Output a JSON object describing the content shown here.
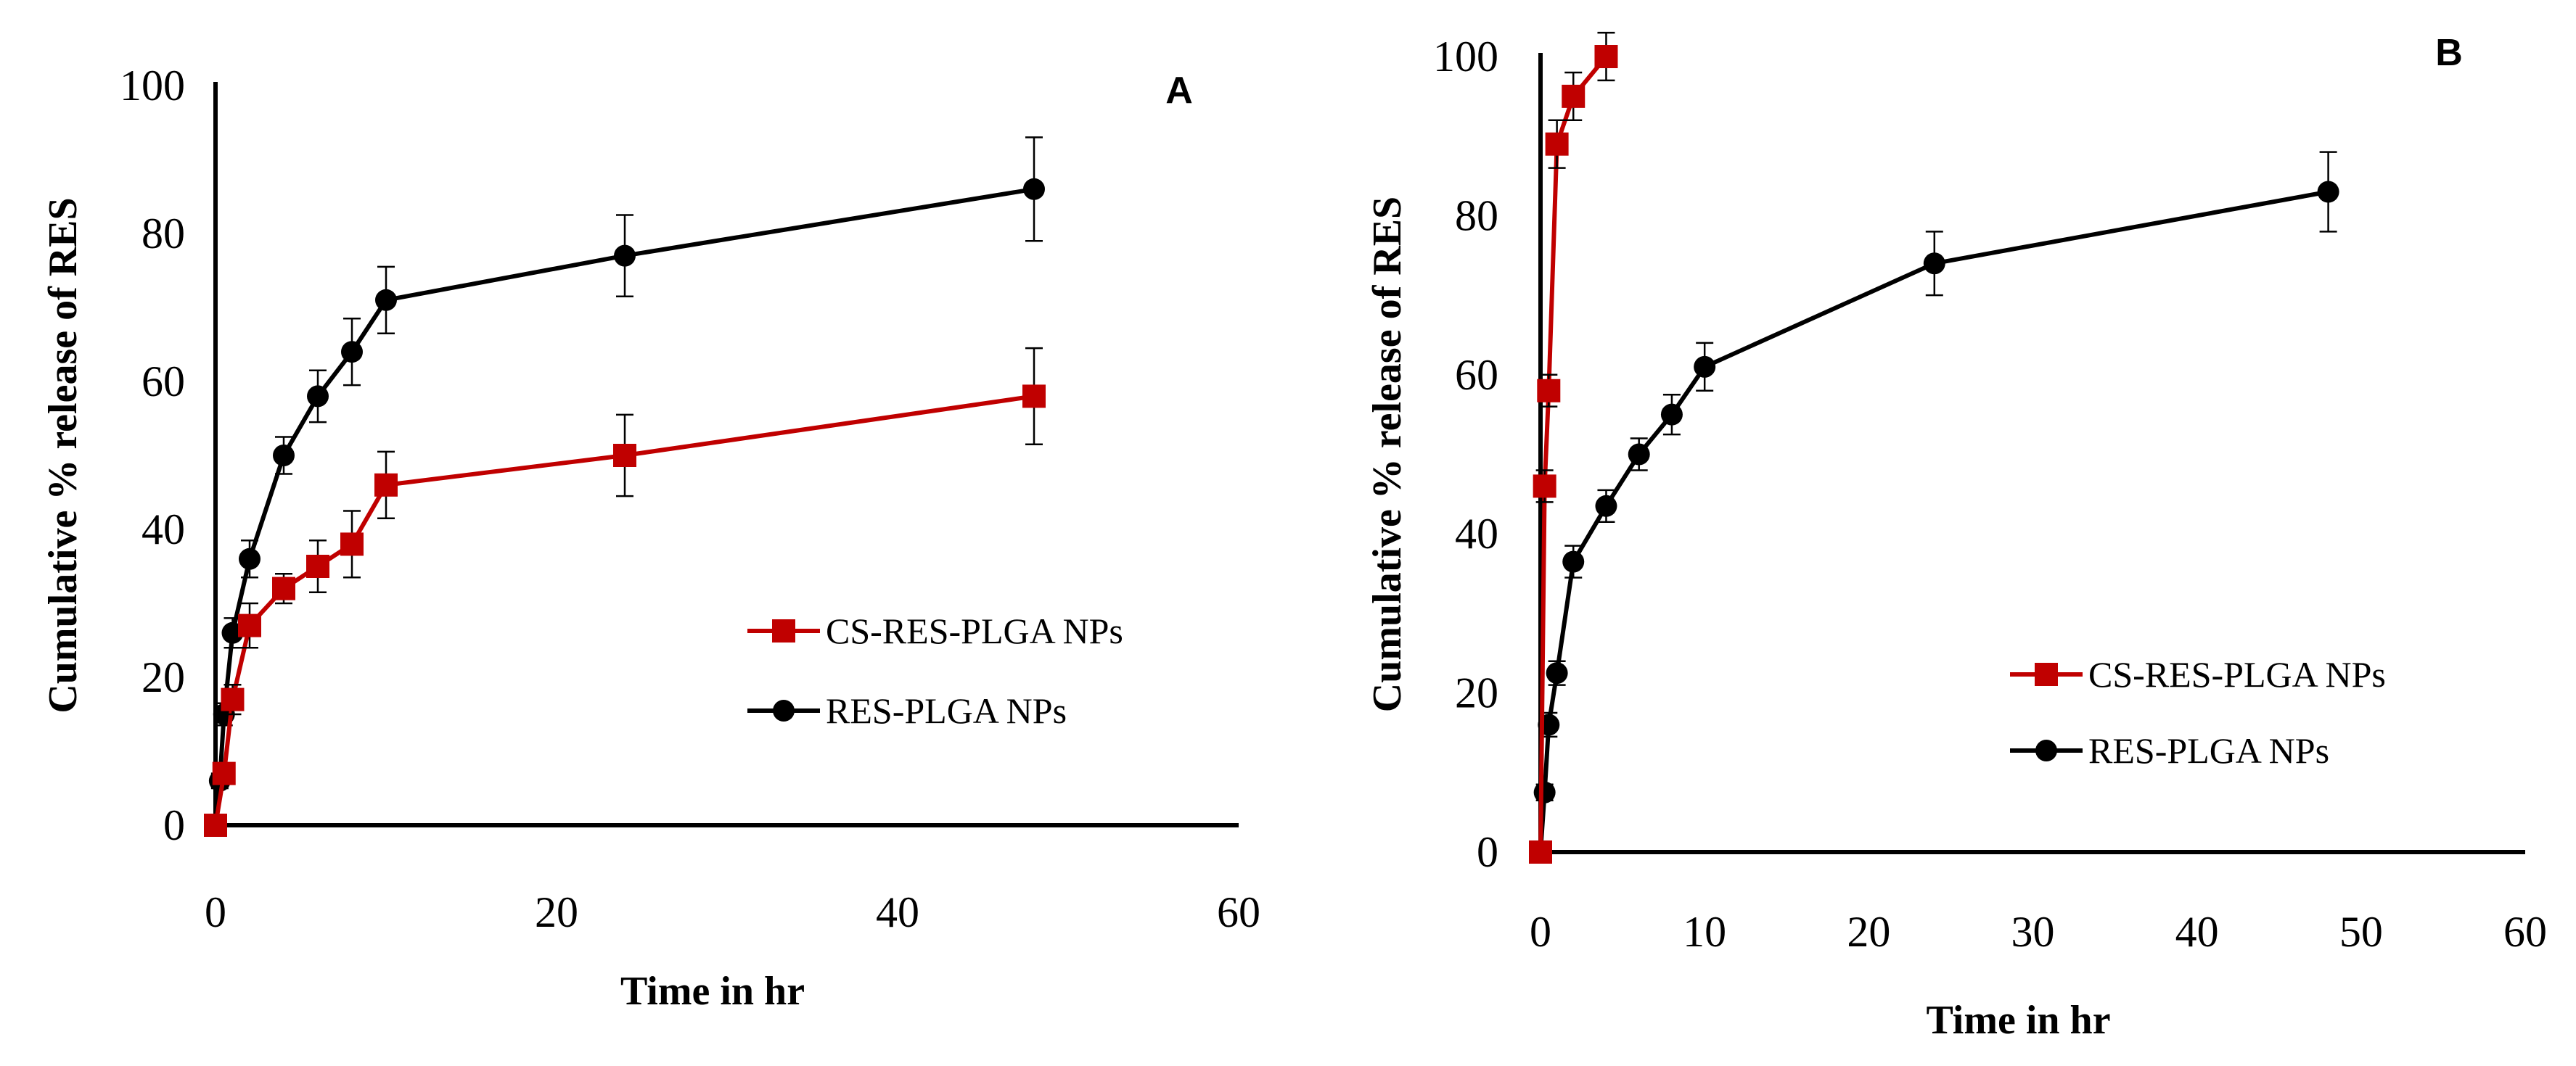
{
  "chart_data": [
    {
      "type": "line",
      "panel_label": "A",
      "xlabel": "Time in hr",
      "ylabel": "Cumulative  % release of RES",
      "xlim": [
        0,
        60
      ],
      "ylim": [
        0,
        100
      ],
      "x_ticks": [
        0,
        20,
        40,
        60
      ],
      "y_ticks": [
        0,
        20,
        40,
        60,
        80,
        100
      ],
      "legend_position": "center-right",
      "series": [
        {
          "name": "CS-RES-PLGA NPs",
          "color": "#c00000",
          "marker": "square",
          "x": [
            0,
            0.5,
            1,
            2,
            4,
            6,
            8,
            10,
            24,
            48
          ],
          "y": [
            0,
            7,
            17,
            27,
            32,
            35,
            38,
            46,
            50,
            58
          ],
          "err": [
            0,
            1,
            2,
            3,
            2,
            3.5,
            4.5,
            4.5,
            5.5,
            6.5
          ]
        },
        {
          "name": "RES-PLGA NPs",
          "color": "#000000",
          "marker": "circle",
          "x": [
            0,
            0.25,
            0.5,
            1,
            2,
            4,
            6,
            8,
            10,
            24,
            48
          ],
          "y": [
            0,
            6,
            15,
            26,
            36,
            50,
            58,
            64,
            71,
            77,
            86
          ],
          "err": [
            0,
            1,
            1.5,
            2,
            2.5,
            2.5,
            3.5,
            4.5,
            4.5,
            5.5,
            7
          ]
        }
      ]
    },
    {
      "type": "line",
      "panel_label": "B",
      "xlabel": "Time in hr",
      "ylabel": "Cumulative  % release of RES",
      "xlim": [
        0,
        60
      ],
      "ylim": [
        0,
        100
      ],
      "x_ticks": [
        0,
        10,
        20,
        30,
        40,
        50,
        60
      ],
      "y_ticks": [
        0,
        20,
        40,
        60,
        80,
        100
      ],
      "legend_position": "center-right",
      "series": [
        {
          "name": "CS-RES-PLGA NPs",
          "color": "#c00000",
          "marker": "square",
          "x": [
            0,
            0.25,
            0.5,
            1,
            2,
            4
          ],
          "y": [
            0,
            46,
            58,
            89,
            95,
            100
          ],
          "err": [
            0,
            2,
            2,
            3,
            3,
            3
          ]
        },
        {
          "name": "RES-PLGA NPs",
          "color": "#000000",
          "marker": "circle",
          "x": [
            0,
            0.25,
            0.5,
            1,
            2,
            4,
            6,
            8,
            10,
            24,
            48
          ],
          "y": [
            0,
            7.5,
            16,
            22.5,
            36.5,
            43.5,
            50,
            55,
            61,
            74,
            83
          ],
          "err": [
            0,
            1,
            1.5,
            1.5,
            2,
            2,
            2,
            2.5,
            3,
            4,
            5
          ]
        }
      ]
    }
  ]
}
